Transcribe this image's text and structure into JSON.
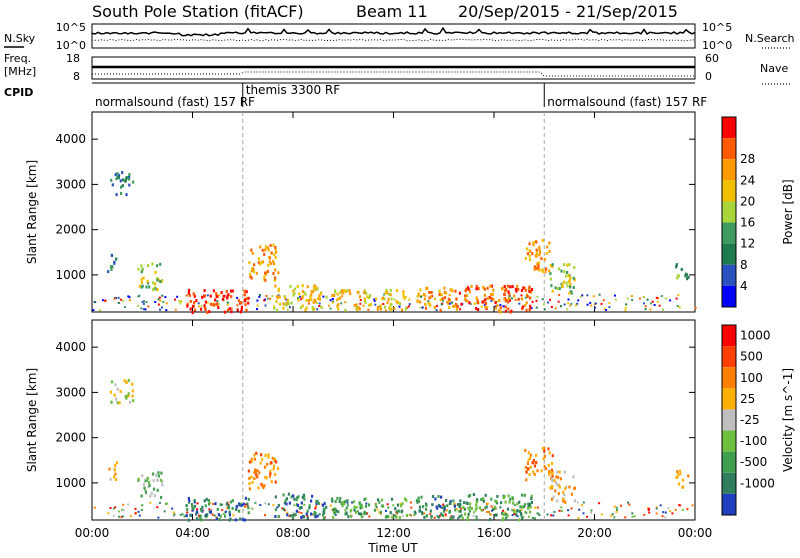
{
  "header": {
    "station": "South Pole Station (fitACF)",
    "beam": "Beam 11",
    "dates": "20/Sep/2015 - 21/Sep/2015"
  },
  "strips": {
    "nsky_label": "N.Sky",
    "nsearch_label": "N.Search",
    "nsky_ticks": [
      "10^5",
      "10^0"
    ],
    "nsky_right_ticks": [
      "10^5",
      "10^0"
    ],
    "freq_label": "Freq.",
    "freq_unit": "[MHz]",
    "freq_ticks": [
      "18",
      "8"
    ],
    "nave_label": "Nave",
    "nave_ticks": [
      "60",
      "0"
    ],
    "cpid_label": "CPID"
  },
  "cpid_segments": [
    {
      "start_hour": 0,
      "end_hour": 6,
      "label": "normalsound (fast) 157 RF"
    },
    {
      "start_hour": 6,
      "end_hour": 18,
      "label": "themis 3300 RF"
    },
    {
      "start_hour": 18,
      "end_hour": 24,
      "label": "normalsound (fast) 157 RF"
    }
  ],
  "time_axis": {
    "label": "Time UT",
    "ticks": [
      "00:00",
      "04:00",
      "08:00",
      "12:00",
      "16:00",
      "20:00",
      "00:00"
    ],
    "tick_hours": [
      0,
      4,
      8,
      12,
      16,
      20,
      24
    ]
  },
  "chart_data": [
    {
      "type": "heatmap",
      "title": "",
      "xlabel": "Time UT",
      "ylabel": "Slant Range [km]",
      "xlim_hours": [
        0,
        24
      ],
      "ylim_km": [
        180,
        4600
      ],
      "yticks": [
        1000,
        2000,
        3000,
        4000
      ],
      "colorbar": {
        "label": "Power [dB]",
        "ticks": [
          "4",
          "8",
          "12",
          "16",
          "20",
          "24",
          "28"
        ],
        "range": [
          0,
          30
        ],
        "colors": [
          "#0000ff",
          "#2a52be",
          "#1f7a4d",
          "#3e9a5f",
          "#a8d63a",
          "#f0c000",
          "#ff9a00",
          "#ff5a00",
          "#ff0000"
        ]
      },
      "echo_regions": [
        {
          "t0": 0.7,
          "t1": 1.6,
          "r0": 2800,
          "r1": 3300,
          "level": 2
        },
        {
          "t0": 0.6,
          "t1": 1.0,
          "r0": 1100,
          "r1": 1500,
          "level": 2
        },
        {
          "t0": 1.8,
          "t1": 2.8,
          "r0": 700,
          "r1": 1300,
          "level": 4
        },
        {
          "t0": 3.7,
          "t1": 6.2,
          "r0": 200,
          "r1": 700,
          "level": 8
        },
        {
          "t0": 6.2,
          "t1": 7.4,
          "r0": 900,
          "r1": 1700,
          "level": 6
        },
        {
          "t0": 7.2,
          "t1": 9.3,
          "r0": 250,
          "r1": 800,
          "level": 5
        },
        {
          "t0": 9.5,
          "t1": 12.5,
          "r0": 250,
          "r1": 700,
          "level": 5
        },
        {
          "t0": 12.8,
          "t1": 14.5,
          "r0": 250,
          "r1": 750,
          "level": 6
        },
        {
          "t0": 14.5,
          "t1": 17.5,
          "r0": 200,
          "r1": 800,
          "level": 7
        },
        {
          "t0": 17.2,
          "t1": 18.3,
          "r0": 1100,
          "r1": 1800,
          "level": 6
        },
        {
          "t0": 18.2,
          "t1": 19.2,
          "r0": 600,
          "r1": 1300,
          "level": 4
        },
        {
          "t0": 23.2,
          "t1": 23.7,
          "r0": 900,
          "r1": 1300,
          "level": 3
        }
      ]
    },
    {
      "type": "heatmap",
      "title": "",
      "xlabel": "Time UT",
      "ylabel": "Slant Range [km]",
      "xlim_hours": [
        0,
        24
      ],
      "ylim_km": [
        180,
        4600
      ],
      "yticks": [
        1000,
        2000,
        3000,
        4000
      ],
      "colorbar": {
        "label": "Velocity [m s^-1]",
        "ticks": [
          "1000",
          "500",
          "100",
          "25",
          "-25",
          "-100",
          "-500",
          "-1000"
        ],
        "colors": [
          "#1f3fbf",
          "#2f7f5f",
          "#3f9f4f",
          "#6fbf3f",
          "#bfbfbf",
          "#ffb000",
          "#ff8000",
          "#ff4000",
          "#ff0000"
        ]
      },
      "echo_regions": [
        {
          "t0": 0.7,
          "t1": 1.6,
          "r0": 2800,
          "r1": 3300,
          "level": 4
        },
        {
          "t0": 0.6,
          "t1": 1.0,
          "r0": 1100,
          "r1": 1500,
          "level": 5
        },
        {
          "t0": 1.8,
          "t1": 2.8,
          "r0": 700,
          "r1": 1300,
          "level": 3
        },
        {
          "t0": 3.7,
          "t1": 6.2,
          "r0": 200,
          "r1": 700,
          "level": 1
        },
        {
          "t0": 6.2,
          "t1": 7.4,
          "r0": 900,
          "r1": 1700,
          "level": 6
        },
        {
          "t0": 7.2,
          "t1": 9.3,
          "r0": 250,
          "r1": 800,
          "level": 1
        },
        {
          "t0": 9.5,
          "t1": 12.5,
          "r0": 250,
          "r1": 700,
          "level": 2
        },
        {
          "t0": 12.8,
          "t1": 14.5,
          "r0": 250,
          "r1": 750,
          "level": 1
        },
        {
          "t0": 14.5,
          "t1": 17.5,
          "r0": 200,
          "r1": 800,
          "level": 2
        },
        {
          "t0": 17.2,
          "t1": 18.3,
          "r0": 1100,
          "r1": 1800,
          "level": 6
        },
        {
          "t0": 18.2,
          "t1": 19.2,
          "r0": 600,
          "r1": 1300,
          "level": 5
        },
        {
          "t0": 23.2,
          "t1": 23.7,
          "r0": 900,
          "r1": 1300,
          "level": 6
        }
      ]
    }
  ]
}
